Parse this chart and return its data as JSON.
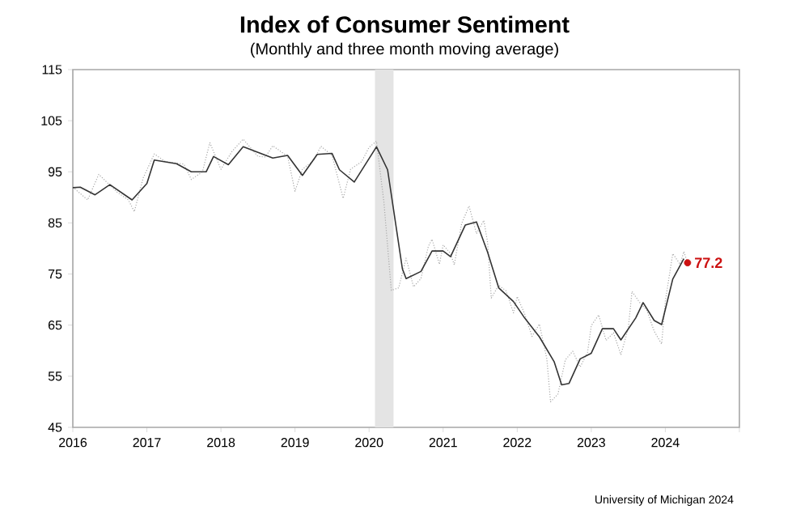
{
  "chart_data": {
    "type": "line",
    "title": "Index of Consumer Sentiment",
    "subtitle": "(Monthly and three month moving average)",
    "annotations": [
      "University of Michigan 2024"
    ],
    "xlim": [
      2016,
      2025
    ],
    "xticks": [
      2016,
      2017,
      2018,
      2019,
      2020,
      2021,
      2022,
      2023,
      2024,
      {
        "value": 2025,
        "label": null
      }
    ],
    "ylim": [
      45,
      115
    ],
    "yticks": [
      45,
      55,
      65,
      75,
      85,
      95,
      105,
      115
    ],
    "bands": [
      {
        "axis": "x",
        "from": 2020.08,
        "to": 2020.33,
        "color": "#e4e4e4"
      }
    ],
    "series": [
      {
        "line_style": "dotted",
        "color": "#a8a8a8",
        "x": [
          2016.0,
          2016.2,
          2016.35,
          2016.6,
          2016.75,
          2016.83,
          2016.95,
          2017.1,
          2017.25,
          2017.5,
          2017.6,
          2017.75,
          2017.85,
          2018.0,
          2018.15,
          2018.3,
          2018.5,
          2018.6,
          2018.7,
          2018.9,
          2019.0,
          2019.1,
          2019.25,
          2019.35,
          2019.5,
          2019.65,
          2019.75,
          2019.9,
          2020.0,
          2020.1,
          2020.2,
          2020.3,
          2020.4,
          2020.5,
          2020.6,
          2020.7,
          2020.8,
          2020.85,
          2020.95,
          2021.0,
          2021.1,
          2021.15,
          2021.25,
          2021.35,
          2021.45,
          2021.55,
          2021.6,
          2021.65,
          2021.75,
          2021.85,
          2021.95,
          2022.0,
          2022.1,
          2022.2,
          2022.3,
          2022.4,
          2022.45,
          2022.55,
          2022.65,
          2022.75,
          2022.85,
          2022.95,
          2023.0,
          2023.1,
          2023.2,
          2023.3,
          2023.4,
          2023.5,
          2023.55,
          2023.65,
          2023.75,
          2023.85,
          2023.95,
          2024.0,
          2024.1,
          2024.2,
          2024.25,
          2024.3
        ],
        "values": [
          92,
          89.5,
          94.5,
          91,
          89.5,
          87.2,
          93.8,
          98.5,
          97,
          96.5,
          93.5,
          95,
          100.7,
          95.5,
          99,
          101.4,
          98,
          97.9,
          100.1,
          98,
          91.2,
          95.5,
          97.2,
          100,
          98.2,
          89.8,
          95.5,
          97,
          99.8,
          101,
          89.1,
          71.8,
          72.3,
          78.1,
          72.5,
          74.1,
          80.4,
          81.8,
          76.9,
          80.7,
          79,
          76.8,
          84.9,
          88.3,
          82.9,
          85.5,
          81.2,
          70.3,
          72.8,
          71.7,
          67.4,
          70.6,
          67.2,
          62.8,
          65.2,
          58.4,
          50.0,
          51.5,
          58.2,
          59.9,
          56.8,
          59.7,
          64.9,
          67,
          62,
          63.5,
          59.2,
          64.4,
          71.6,
          69.5,
          67.9,
          63.8,
          61.3,
          69.7,
          79,
          76.9,
          79.4,
          77.2
        ]
      },
      {
        "line_style": "solid",
        "color": "#333333",
        "x": [
          2016.0,
          2016.1,
          2016.3,
          2016.5,
          2016.8,
          2017.0,
          2017.1,
          2017.4,
          2017.6,
          2017.8,
          2017.9,
          2018.1,
          2018.3,
          2018.7,
          2018.9,
          2019.1,
          2019.3,
          2019.5,
          2019.6,
          2019.8,
          2020.1,
          2020.25,
          2020.45,
          2020.5,
          2020.7,
          2020.85,
          2021.0,
          2021.1,
          2021.3,
          2021.45,
          2021.6,
          2021.75,
          2021.95,
          2022.1,
          2022.3,
          2022.5,
          2022.6,
          2022.7,
          2022.85,
          2023.0,
          2023.15,
          2023.3,
          2023.4,
          2023.6,
          2023.7,
          2023.85,
          2023.95,
          2024.1,
          2024.25
        ],
        "values": [
          91.9,
          92,
          90.5,
          92.5,
          89.5,
          92.7,
          97.3,
          96.6,
          95,
          95,
          98,
          96.4,
          99.9,
          97.7,
          98.2,
          94.3,
          98.4,
          98.6,
          95.4,
          93,
          99.9,
          95.4,
          76,
          74.1,
          75.5,
          79.5,
          79.5,
          78.4,
          84.6,
          85.2,
          79.3,
          72.3,
          69.6,
          66.4,
          62.7,
          57.8,
          53.3,
          53.6,
          58.4,
          59.5,
          64.3,
          64.3,
          62.1,
          66.4,
          69.4,
          65.9,
          65.1,
          74,
          78
        ]
      },
      {
        "type": "scatter",
        "marker": "circle",
        "color": "#cc1111",
        "x": [
          2024.3
        ],
        "values": [
          77.2
        ],
        "value_labels": [
          "77.2"
        ]
      }
    ]
  }
}
